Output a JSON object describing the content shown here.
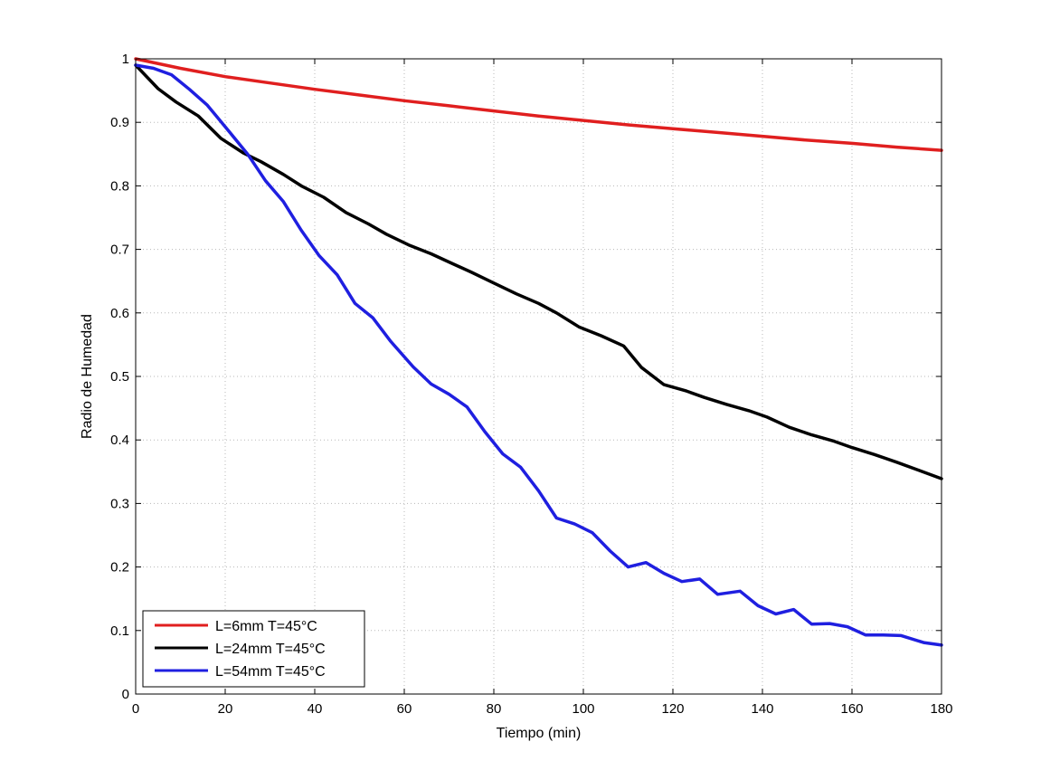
{
  "chart_data": {
    "type": "line",
    "title": "",
    "xlabel": "Tiempo (min)",
    "ylabel": "Radio de Humedad",
    "xlim": [
      0,
      180
    ],
    "ylim": [
      0,
      1
    ],
    "xticks": [
      0,
      20,
      40,
      60,
      80,
      100,
      120,
      140,
      160,
      180
    ],
    "yticks": [
      0,
      0.1,
      0.2,
      0.3,
      0.4,
      0.5,
      0.6,
      0.7,
      0.8,
      0.9,
      1
    ],
    "xtick_labels": [
      "0",
      "20",
      "40",
      "60",
      "80",
      "100",
      "120",
      "140",
      "160",
      "180"
    ],
    "ytick_labels": [
      "0",
      "0.1",
      "0.2",
      "0.3",
      "0.4",
      "0.5",
      "0.6",
      "0.7",
      "0.8",
      "0.9",
      "1"
    ],
    "grid": true,
    "legend_position": "bottom-left",
    "series": [
      {
        "name": "L=6mm T=45°C",
        "color": "#e01f1f",
        "x": [
          0,
          10,
          20,
          30,
          40,
          50,
          60,
          70,
          80,
          90,
          100,
          110,
          120,
          130,
          140,
          150,
          160,
          170,
          180
        ],
        "y": [
          1.0,
          0.985,
          0.972,
          0.962,
          0.952,
          0.943,
          0.934,
          0.926,
          0.918,
          0.91,
          0.903,
          0.896,
          0.89,
          0.884,
          0.878,
          0.872,
          0.867,
          0.861,
          0.856
        ]
      },
      {
        "name": "L=24mm T=45°C",
        "color": "#000000",
        "x": [
          0,
          5,
          9,
          14,
          19,
          24,
          28,
          33,
          37,
          42,
          47,
          52,
          56,
          61,
          66,
          70,
          75,
          80,
          85,
          90,
          94,
          99,
          104,
          109,
          113,
          118,
          123,
          127,
          132,
          137,
          141,
          146,
          151,
          156,
          160,
          165,
          170,
          175,
          180
        ],
        "y": [
          0.99,
          0.953,
          0.932,
          0.91,
          0.875,
          0.852,
          0.838,
          0.818,
          0.8,
          0.782,
          0.758,
          0.74,
          0.724,
          0.707,
          0.693,
          0.68,
          0.664,
          0.647,
          0.63,
          0.615,
          0.6,
          0.578,
          0.564,
          0.548,
          0.514,
          0.487,
          0.477,
          0.467,
          0.456,
          0.446,
          0.436,
          0.42,
          0.408,
          0.398,
          0.388,
          0.377,
          0.365,
          0.352,
          0.339
        ]
      },
      {
        "name": "L=54mm T=45°C",
        "color": "#1f1fe0",
        "x": [
          0,
          4,
          8,
          12,
          16,
          20,
          25,
          29,
          33,
          37,
          41,
          45,
          49,
          53,
          57,
          62,
          66,
          70,
          74,
          78,
          82,
          86,
          90,
          94,
          98,
          102,
          106,
          110,
          114,
          118,
          122,
          126,
          130,
          135,
          139,
          143,
          147,
          151,
          155,
          159,
          163,
          167,
          171,
          176,
          180
        ],
        "y": [
          0.99,
          0.985,
          0.975,
          0.952,
          0.927,
          0.893,
          0.85,
          0.808,
          0.775,
          0.73,
          0.69,
          0.66,
          0.615,
          0.592,
          0.555,
          0.515,
          0.488,
          0.472,
          0.452,
          0.413,
          0.378,
          0.357,
          0.32,
          0.277,
          0.268,
          0.254,
          0.225,
          0.2,
          0.207,
          0.19,
          0.177,
          0.181,
          0.157,
          0.162,
          0.139,
          0.126,
          0.133,
          0.11,
          0.111,
          0.106,
          0.093,
          0.093,
          0.092,
          0.081,
          0.077
        ]
      }
    ]
  }
}
